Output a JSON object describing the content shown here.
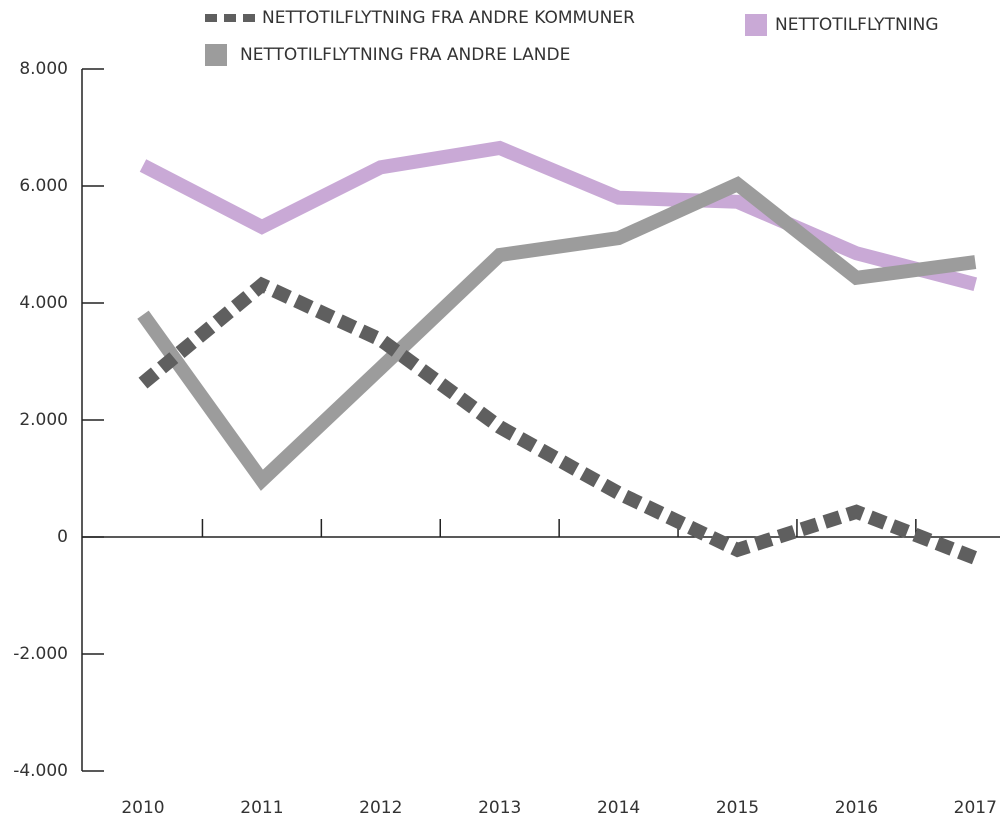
{
  "chart_data": {
    "type": "line",
    "categories": [
      "2010",
      "2011",
      "2012",
      "2013",
      "2014",
      "2015",
      "2016",
      "2017"
    ],
    "series": [
      {
        "name": "NETTOTILFLYTNING",
        "color": "#c9a9d6",
        "dashed": false,
        "values": [
          6350,
          5300,
          6320,
          6650,
          5800,
          5730,
          4850,
          4320
        ]
      },
      {
        "name": "NETTOTILFLYTNING FRA ANDRE LANDE",
        "color": "#9c9c9c",
        "dashed": false,
        "values": [
          3800,
          970,
          2890,
          4820,
          5110,
          6030,
          4430,
          4700
        ]
      },
      {
        "name": "NETTOTILFLYTNING FRA ANDRE KOMMUNER",
        "color": "#5f5f5f",
        "dashed": true,
        "values": [
          2630,
          4310,
          3370,
          1880,
          750,
          -220,
          430,
          -360
        ]
      }
    ],
    "ylim": [
      -4000,
      8000
    ],
    "yticks": [
      {
        "value": -4000,
        "label": "-4.000"
      },
      {
        "value": -2000,
        "label": "-2.000"
      },
      0,
      {
        "value": 2000,
        "label": "2.000"
      },
      {
        "value": 4000,
        "label": "4.000"
      },
      {
        "value": 6000,
        "label": "6.000"
      },
      {
        "value": 8000,
        "label": "8.000"
      }
    ],
    "grid": false
  }
}
